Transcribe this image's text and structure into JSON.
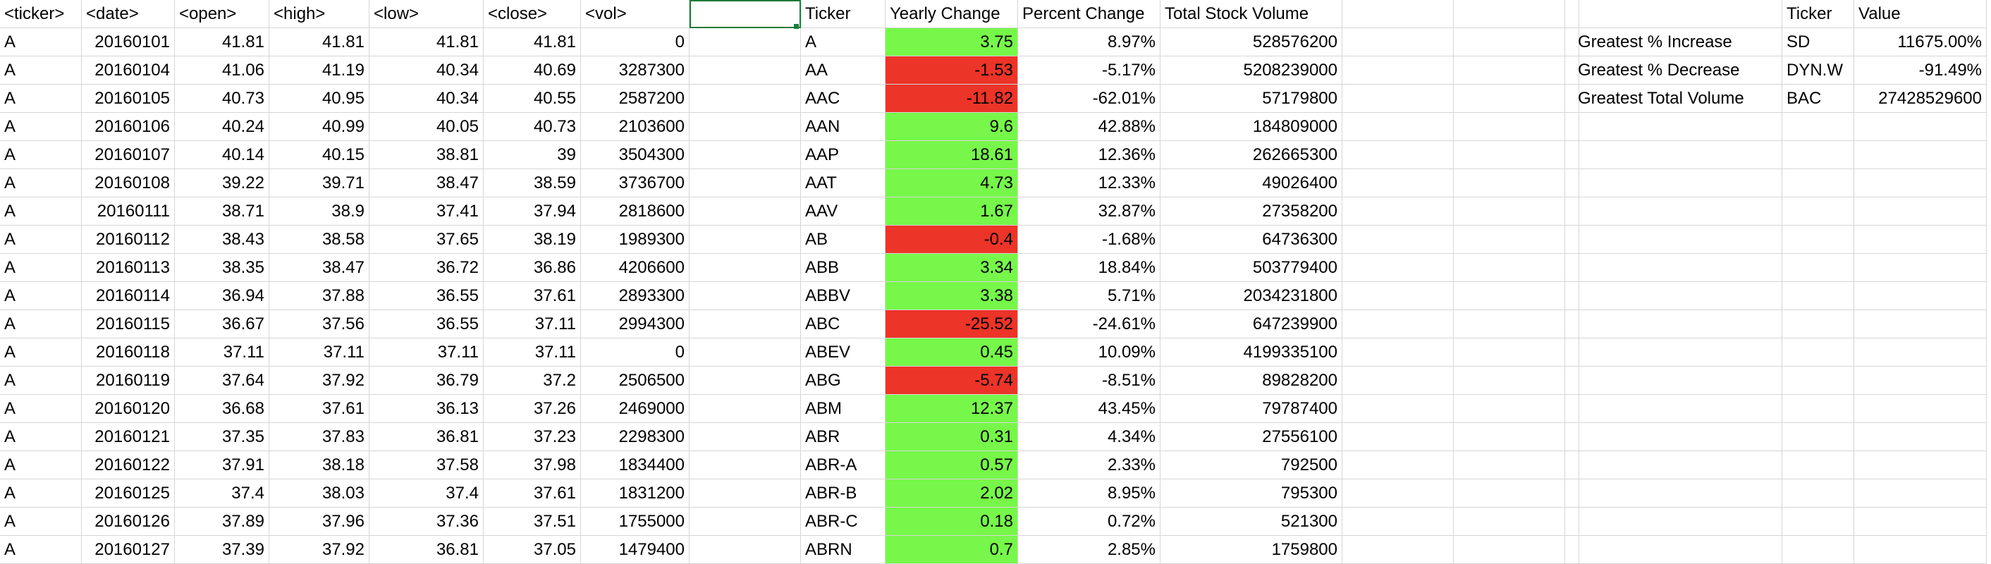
{
  "sheet": {
    "headers": [
      "<ticker>",
      "<date>",
      "<open>",
      "<high>",
      "<low>",
      "<close>",
      "<vol>",
      "",
      "Ticker",
      "Yearly Change",
      "Percent Change",
      "Total Stock Volume",
      "",
      "",
      "",
      "",
      "",
      "",
      "Ticker",
      "Value"
    ],
    "rows": [
      {
        "raw": [
          "A",
          "20160101",
          "41.81",
          "41.81",
          "41.81",
          "41.81",
          "0"
        ],
        "summary": [
          "A",
          "3.75",
          "8.97%",
          "528576200"
        ],
        "change": "pos",
        "extra": [
          "Greatest % Increase",
          "SD",
          "11675.00%"
        ]
      },
      {
        "raw": [
          "A",
          "20160104",
          "41.06",
          "41.19",
          "40.34",
          "40.69",
          "3287300"
        ],
        "summary": [
          "AA",
          "-1.53",
          "-5.17%",
          "5208239000"
        ],
        "change": "neg",
        "extra": [
          "Greatest % Decrease",
          "DYN.W",
          "-91.49%"
        ]
      },
      {
        "raw": [
          "A",
          "20160105",
          "40.73",
          "40.95",
          "40.34",
          "40.55",
          "2587200"
        ],
        "summary": [
          "AAC",
          "-11.82",
          "-62.01%",
          "57179800"
        ],
        "change": "neg",
        "extra": [
          "Greatest Total Volume",
          "BAC",
          "27428529600"
        ]
      },
      {
        "raw": [
          "A",
          "20160106",
          "40.24",
          "40.99",
          "40.05",
          "40.73",
          "2103600"
        ],
        "summary": [
          "AAN",
          "9.6",
          "42.88%",
          "184809000"
        ],
        "change": "pos",
        "extra": [
          "",
          "",
          ""
        ]
      },
      {
        "raw": [
          "A",
          "20160107",
          "40.14",
          "40.15",
          "38.81",
          "39",
          "3504300"
        ],
        "summary": [
          "AAP",
          "18.61",
          "12.36%",
          "262665300"
        ],
        "change": "pos",
        "extra": [
          "",
          "",
          ""
        ]
      },
      {
        "raw": [
          "A",
          "20160108",
          "39.22",
          "39.71",
          "38.47",
          "38.59",
          "3736700"
        ],
        "summary": [
          "AAT",
          "4.73",
          "12.33%",
          "49026400"
        ],
        "change": "pos",
        "extra": [
          "",
          "",
          ""
        ]
      },
      {
        "raw": [
          "A",
          "20160111",
          "38.71",
          "38.9",
          "37.41",
          "37.94",
          "2818600"
        ],
        "summary": [
          "AAV",
          "1.67",
          "32.87%",
          "27358200"
        ],
        "change": "pos",
        "extra": [
          "",
          "",
          ""
        ]
      },
      {
        "raw": [
          "A",
          "20160112",
          "38.43",
          "38.58",
          "37.65",
          "38.19",
          "1989300"
        ],
        "summary": [
          "AB",
          "-0.4",
          "-1.68%",
          "64736300"
        ],
        "change": "neg",
        "extra": [
          "",
          "",
          ""
        ]
      },
      {
        "raw": [
          "A",
          "20160113",
          "38.35",
          "38.47",
          "36.72",
          "36.86",
          "4206600"
        ],
        "summary": [
          "ABB",
          "3.34",
          "18.84%",
          "503779400"
        ],
        "change": "pos",
        "extra": [
          "",
          "",
          ""
        ]
      },
      {
        "raw": [
          "A",
          "20160114",
          "36.94",
          "37.88",
          "36.55",
          "37.61",
          "2893300"
        ],
        "summary": [
          "ABBV",
          "3.38",
          "5.71%",
          "2034231800"
        ],
        "change": "pos",
        "extra": [
          "",
          "",
          ""
        ]
      },
      {
        "raw": [
          "A",
          "20160115",
          "36.67",
          "37.56",
          "36.55",
          "37.11",
          "2994300"
        ],
        "summary": [
          "ABC",
          "-25.52",
          "-24.61%",
          "647239900"
        ],
        "change": "neg",
        "extra": [
          "",
          "",
          ""
        ]
      },
      {
        "raw": [
          "A",
          "20160118",
          "37.11",
          "37.11",
          "37.11",
          "37.11",
          "0"
        ],
        "summary": [
          "ABEV",
          "0.45",
          "10.09%",
          "4199335100"
        ],
        "change": "pos",
        "extra": [
          "",
          "",
          ""
        ]
      },
      {
        "raw": [
          "A",
          "20160119",
          "37.64",
          "37.92",
          "36.79",
          "37.2",
          "2506500"
        ],
        "summary": [
          "ABG",
          "-5.74",
          "-8.51%",
          "89828200"
        ],
        "change": "neg",
        "extra": [
          "",
          "",
          ""
        ]
      },
      {
        "raw": [
          "A",
          "20160120",
          "36.68",
          "37.61",
          "36.13",
          "37.26",
          "2469000"
        ],
        "summary": [
          "ABM",
          "12.37",
          "43.45%",
          "79787400"
        ],
        "change": "pos",
        "extra": [
          "",
          "",
          ""
        ]
      },
      {
        "raw": [
          "A",
          "20160121",
          "37.35",
          "37.83",
          "36.81",
          "37.23",
          "2298300"
        ],
        "summary": [
          "ABR",
          "0.31",
          "4.34%",
          "27556100"
        ],
        "change": "pos",
        "extra": [
          "",
          "",
          ""
        ]
      },
      {
        "raw": [
          "A",
          "20160122",
          "37.91",
          "38.18",
          "37.58",
          "37.98",
          "1834400"
        ],
        "summary": [
          "ABR-A",
          "0.57",
          "2.33%",
          "792500"
        ],
        "change": "pos",
        "extra": [
          "",
          "",
          ""
        ]
      },
      {
        "raw": [
          "A",
          "20160125",
          "37.4",
          "38.03",
          "37.4",
          "37.61",
          "1831200"
        ],
        "summary": [
          "ABR-B",
          "2.02",
          "8.95%",
          "795300"
        ],
        "change": "pos",
        "extra": [
          "",
          "",
          ""
        ]
      },
      {
        "raw": [
          "A",
          "20160126",
          "37.89",
          "37.96",
          "37.36",
          "37.51",
          "1755000"
        ],
        "summary": [
          "ABR-C",
          "0.18",
          "0.72%",
          "521300"
        ],
        "change": "pos",
        "extra": [
          "",
          "",
          ""
        ]
      },
      {
        "raw": [
          "A",
          "20160127",
          "37.39",
          "37.92",
          "36.81",
          "37.05",
          "1479400"
        ],
        "summary": [
          "ABRN",
          "0.7",
          "2.85%",
          "1759800"
        ],
        "change": "pos",
        "extra": [
          "",
          "",
          ""
        ]
      }
    ],
    "colors": {
      "positive": "#77f74a",
      "negative": "#ec3428",
      "gridline": "#d6d6d6",
      "selection": "#1f7a3a"
    }
  }
}
